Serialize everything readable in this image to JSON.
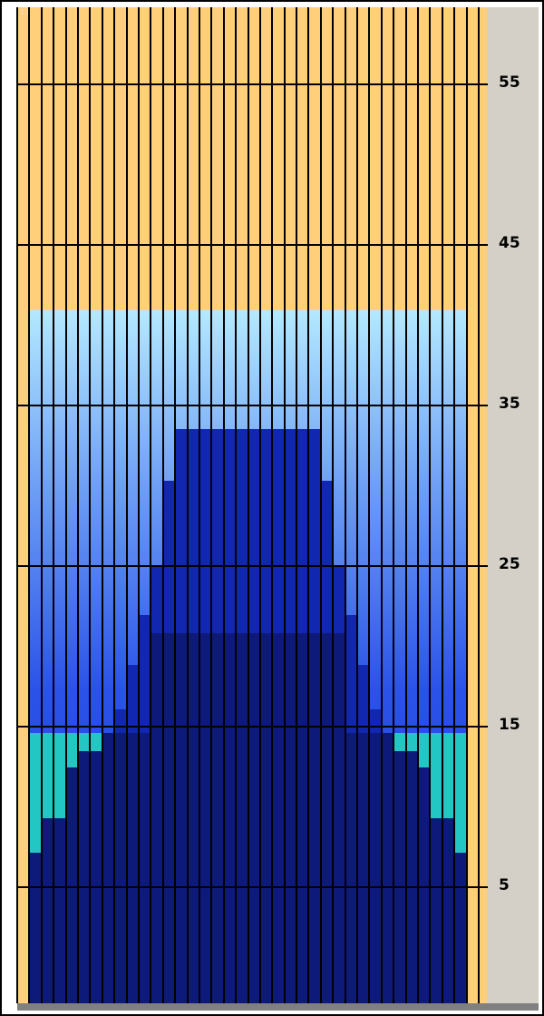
{
  "y_axis": {
    "ticks": [
      {
        "label": "55",
        "value": 55
      },
      {
        "label": "45",
        "value": 45
      },
      {
        "label": "35",
        "value": 35
      },
      {
        "label": "25",
        "value": 25
      },
      {
        "label": "15",
        "value": 15
      },
      {
        "label": "5",
        "value": 5
      }
    ],
    "range": [
      0,
      60
    ]
  },
  "colors": {
    "background": "#FFCF7A",
    "panel": "#D4D0C8",
    "grid_lines": "#000000",
    "teal": "#22C7C3",
    "navy": "#0E1A7A",
    "deep_blue": "#1227B0",
    "mid_blue": "#2A52E8",
    "light_blue": "#B4E9FF"
  },
  "grid": {
    "columns": 38
  }
}
